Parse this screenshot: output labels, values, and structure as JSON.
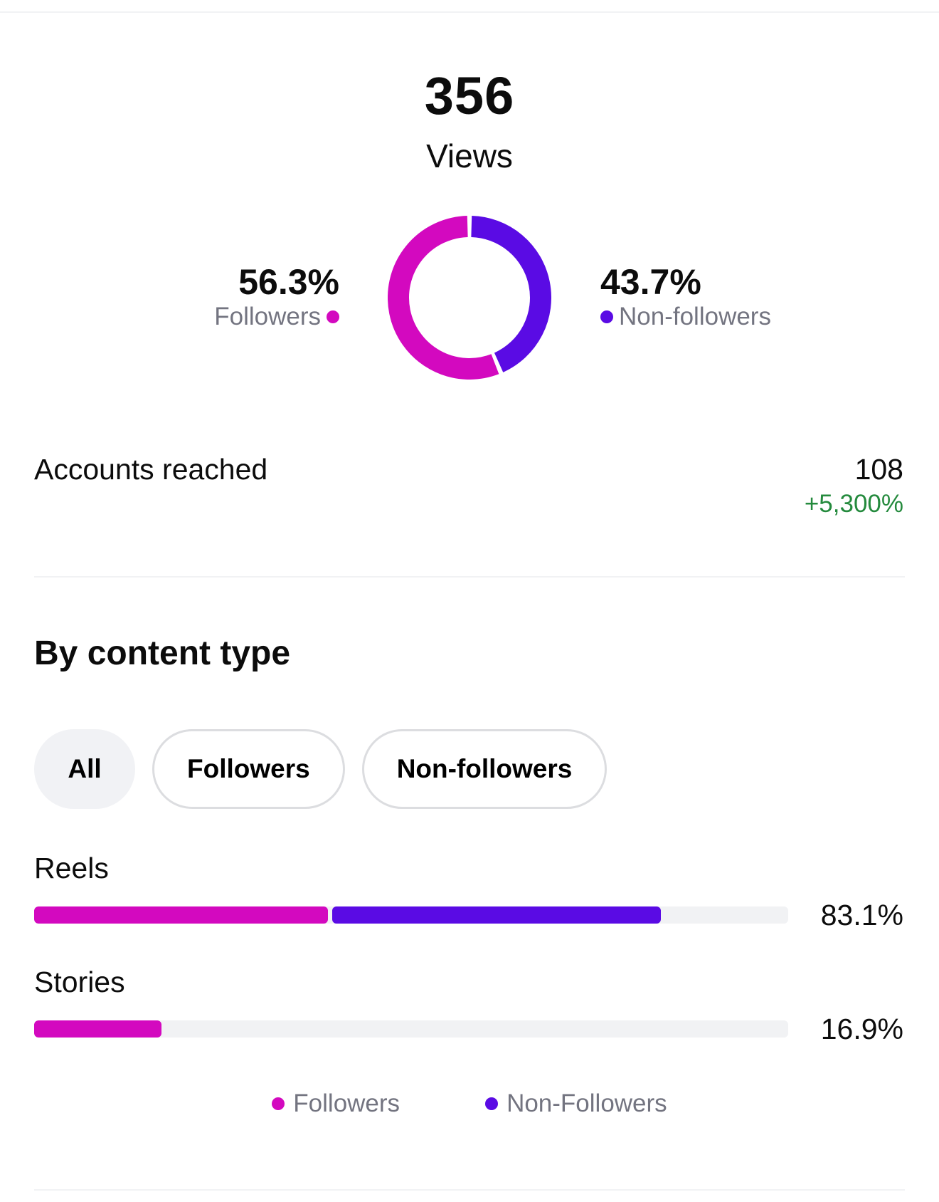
{
  "colors": {
    "followers": "#d309bf",
    "non_followers": "#5a0be4",
    "positive": "#248a3d",
    "track": "#f1f2f4"
  },
  "views": {
    "total": "356",
    "label": "Views"
  },
  "audience_split": {
    "followers": {
      "percent_text": "56.3%",
      "percent": 56.3,
      "label": "Followers"
    },
    "non_followers": {
      "percent_text": "43.7%",
      "percent": 43.7,
      "label": "Non-followers"
    }
  },
  "accounts_reached": {
    "label": "Accounts reached",
    "value": "108",
    "change": "+5,300%"
  },
  "content_type": {
    "title": "By content type",
    "filters": [
      {
        "label": "All",
        "active": true
      },
      {
        "label": "Followers",
        "active": false
      },
      {
        "label": "Non-followers",
        "active": false
      }
    ],
    "rows": [
      {
        "label": "Reels",
        "value_text": "83.1%",
        "followers_share": 39.0,
        "non_followers_share": 44.1
      },
      {
        "label": "Stories",
        "value_text": "16.9%",
        "followers_share": 16.9,
        "non_followers_share": 0
      }
    ],
    "legend": {
      "followers": "Followers",
      "non_followers": "Non-Followers"
    }
  },
  "chart_data": [
    {
      "type": "pie",
      "title": "Views",
      "categories": [
        "Followers",
        "Non-followers"
      ],
      "values": [
        56.3,
        43.7
      ]
    },
    {
      "type": "bar",
      "title": "By content type",
      "categories": [
        "Reels",
        "Stories"
      ],
      "series": [
        {
          "name": "Followers",
          "values": [
            39.0,
            16.9
          ]
        },
        {
          "name": "Non-Followers",
          "values": [
            44.1,
            0
          ]
        }
      ],
      "totals": [
        83.1,
        16.9
      ],
      "ylim": [
        0,
        100
      ]
    }
  ]
}
